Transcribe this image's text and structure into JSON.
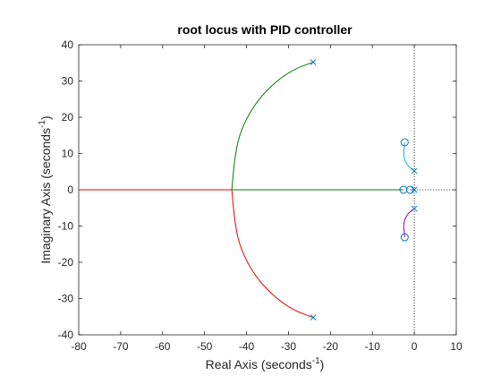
{
  "chart_data": {
    "type": "line",
    "title": "root locus with PID controller",
    "xlabel": "Real Axis (seconds",
    "xlabel_sup": "-1",
    "xlabel_end": ")",
    "ylabel": "Imaginary Axis (seconds",
    "ylabel_sup": "-1",
    "ylabel_end": ")",
    "xlim": [
      -80,
      10
    ],
    "ylim": [
      -40,
      40
    ],
    "xticks": [
      -80,
      -70,
      -60,
      -50,
      -40,
      -30,
      -20,
      -10,
      0,
      10
    ],
    "yticks": [
      -40,
      -30,
      -20,
      -10,
      0,
      10,
      20,
      30,
      40
    ],
    "grid": false,
    "colors": {
      "green": "#007f00",
      "red": "#e60000",
      "cyan": "#00bfbf",
      "magenta": "#9900aa",
      "blue": "#0072bd",
      "axis": "#262626",
      "dotted": "#262626"
    },
    "series": [
      {
        "color": "green",
        "points": [
          [
            -24.1,
            35.2
          ],
          [
            -28,
            33.6
          ],
          [
            -32,
            30.8
          ],
          [
            -36,
            26.5
          ],
          [
            -39.2,
            21.5
          ],
          [
            -41.8,
            15
          ],
          [
            -42.9,
            8
          ],
          [
            -43.5,
            0
          ]
        ]
      },
      {
        "color": "red",
        "points": [
          [
            -24.1,
            -35.2
          ],
          [
            -28,
            -33.6
          ],
          [
            -32,
            -30.8
          ],
          [
            -36,
            -26.5
          ],
          [
            -39.2,
            -21.5
          ],
          [
            -41.8,
            -15
          ],
          [
            -42.9,
            -8
          ],
          [
            -43.5,
            0
          ]
        ]
      },
      {
        "color": "red",
        "points": [
          [
            -43.5,
            0
          ],
          [
            -80,
            0
          ]
        ]
      },
      {
        "color": "green",
        "points": [
          [
            -43.5,
            0
          ],
          [
            -2.6,
            0
          ]
        ]
      },
      {
        "color": "cyan",
        "points": [
          [
            0,
            5.2
          ],
          [
            -1.2,
            6.2
          ],
          [
            -2.2,
            7.8
          ],
          [
            -2.6,
            9.8
          ],
          [
            -2.4,
            11.6
          ],
          [
            -2.3,
            13.1
          ]
        ]
      },
      {
        "color": "magenta",
        "points": [
          [
            0,
            -5.2
          ],
          [
            -1.2,
            -6.2
          ],
          [
            -2.2,
            -7.8
          ],
          [
            -2.6,
            -9.8
          ],
          [
            -2.4,
            -11.6
          ],
          [
            -2.3,
            -13.1
          ]
        ]
      },
      {
        "color": "blue",
        "points": [
          [
            0,
            0
          ],
          [
            -1,
            0
          ]
        ]
      }
    ],
    "poles": [
      [
        -24.1,
        35.2
      ],
      [
        -24.1,
        -35.2
      ],
      [
        0,
        5.2
      ],
      [
        0,
        -5.2
      ],
      [
        0,
        0
      ]
    ],
    "zeros": [
      [
        -2.3,
        13.1
      ],
      [
        -2.3,
        -13.1
      ],
      [
        -2.6,
        0
      ],
      [
        -1,
        0
      ]
    ],
    "dotted_lines": {
      "vertical_x": 0,
      "horizontal_y": 0,
      "horizontal_from": 0,
      "horizontal_to": 10
    }
  }
}
